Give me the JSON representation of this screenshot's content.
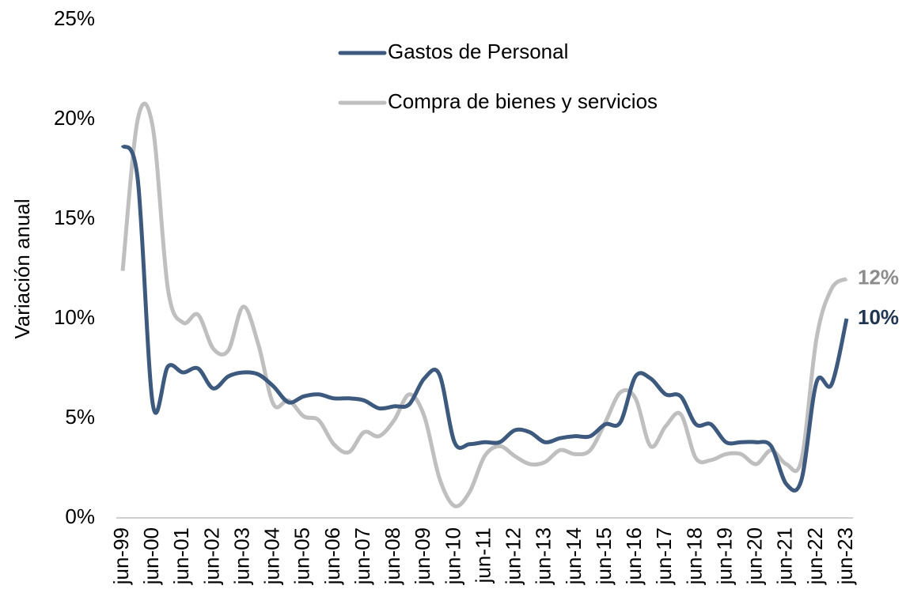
{
  "chart_data": {
    "type": "line",
    "y_label": "Variación anual",
    "categories": [
      "jun-99",
      null,
      "jun-00",
      null,
      "jun-01",
      null,
      "jun-02",
      null,
      "jun-03",
      null,
      "jun-04",
      null,
      "jun-05",
      null,
      "jun-06",
      null,
      "jun-07",
      null,
      "jun-08",
      null,
      "jun-09",
      null,
      "jun-10",
      null,
      "jun-11",
      null,
      "jun-12",
      null,
      "jun-13",
      null,
      "jun-14",
      null,
      "jun-15",
      null,
      "jun-16",
      null,
      "jun-17",
      null,
      "jun-18",
      null,
      "jun-19",
      null,
      "jun-20",
      null,
      "jun-21",
      null,
      "jun-22",
      null,
      "jun-23"
    ],
    "series": [
      {
        "name": "Gastos de Personal",
        "color": "#3d5a7e",
        "values": [
          18.7,
          17.0,
          5.7,
          7.6,
          7.3,
          7.5,
          6.5,
          7.1,
          7.3,
          7.2,
          6.6,
          5.8,
          6.1,
          6.2,
          6.0,
          6.0,
          5.9,
          5.5,
          5.6,
          5.7,
          7.0,
          7.2,
          3.8,
          3.7,
          3.8,
          3.8,
          4.4,
          4.3,
          3.8,
          4.0,
          4.1,
          4.1,
          4.7,
          4.8,
          7.1,
          7.0,
          6.2,
          6.1,
          4.7,
          4.7,
          3.8,
          3.8,
          3.8,
          3.6,
          1.7,
          1.9,
          6.8,
          6.7,
          10.0
        ],
        "value_labels": [
          null,
          null,
          null,
          null,
          null,
          null,
          null,
          null,
          null,
          null,
          null,
          null,
          null,
          null,
          null,
          null,
          null,
          null,
          null,
          null,
          null,
          null,
          null,
          null,
          null,
          null,
          null,
          null,
          null,
          null,
          null,
          null,
          null,
          null,
          null,
          null,
          null,
          null,
          null,
          null,
          null,
          null,
          null,
          null,
          null,
          null,
          null,
          null,
          "10%"
        ],
        "label_color": "#1f3550"
      },
      {
        "name": "Compra de bienes y servicios",
        "color": "#bfbfbf",
        "values": [
          12.4,
          20.0,
          19.6,
          11.5,
          9.8,
          10.2,
          8.5,
          8.4,
          10.6,
          8.7,
          5.7,
          5.9,
          5.1,
          4.9,
          3.7,
          3.3,
          4.3,
          4.1,
          4.9,
          6.2,
          5.1,
          2.0,
          0.6,
          1.3,
          3.1,
          3.6,
          3.1,
          2.7,
          2.8,
          3.4,
          3.2,
          3.4,
          4.8,
          6.3,
          6.0,
          3.6,
          4.6,
          5.2,
          3.0,
          2.9,
          3.2,
          3.2,
          2.7,
          3.4,
          2.7,
          2.9,
          9.0,
          11.5,
          12.0
        ],
        "value_labels": [
          null,
          null,
          null,
          null,
          null,
          null,
          null,
          null,
          null,
          null,
          null,
          null,
          null,
          null,
          null,
          null,
          null,
          null,
          null,
          null,
          null,
          null,
          null,
          null,
          null,
          null,
          null,
          null,
          null,
          null,
          null,
          null,
          null,
          null,
          null,
          null,
          null,
          null,
          null,
          null,
          null,
          null,
          null,
          null,
          null,
          null,
          null,
          null,
          "12%"
        ],
        "label_color": "#8c8c8c"
      }
    ],
    "ylim": [
      0,
      25
    ],
    "yticks": [
      {
        "value": 0,
        "label": "0%"
      },
      {
        "value": 5,
        "label": "5%"
      },
      {
        "value": 10,
        "label": "10%"
      },
      {
        "value": 15,
        "label": "15%"
      },
      {
        "value": 20,
        "label": "20%"
      },
      {
        "value": 25,
        "label": "25%"
      }
    ],
    "legend": "top",
    "grid": false
  }
}
